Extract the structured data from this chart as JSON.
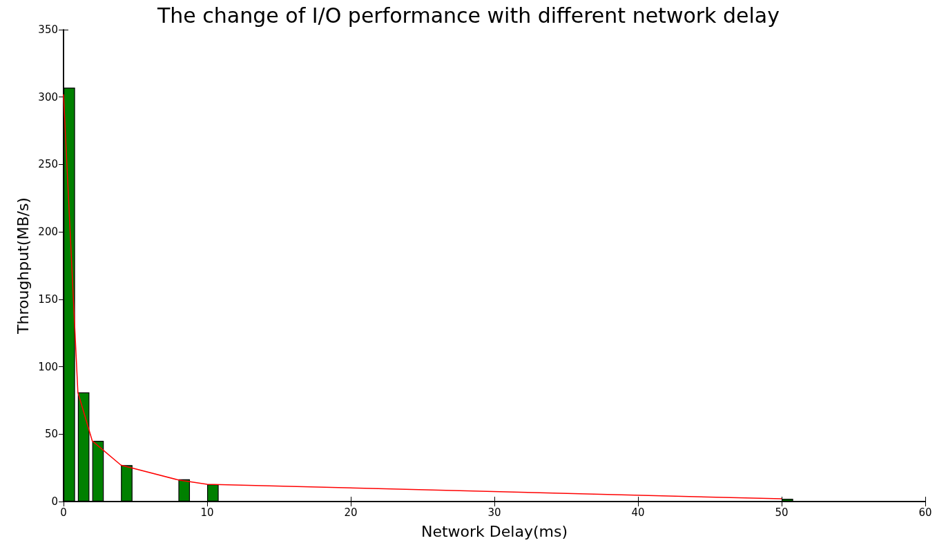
{
  "chart_data": {
    "type": "bar",
    "title": "The change of I/O performance with different network delay",
    "xlabel": "Network Delay(ms)",
    "ylabel": "Throughput(MB/s)",
    "x": [
      0.4,
      1.4,
      2.4,
      4.4,
      8.4,
      10.4,
      50.4
    ],
    "series": [
      {
        "color": "#008000",
        "values": [
          307,
          81,
          45,
          27,
          16.5,
          12.8,
          2
        ]
      },
      {
        "type": "line",
        "color": "#ff0000",
        "x": [
          0,
          1,
          2,
          4,
          8,
          10,
          50
        ],
        "values": [
          302,
          81,
          45,
          27,
          16,
          12.8,
          2
        ]
      }
    ],
    "xlim": [
      0,
      60
    ],
    "xticks": [
      0,
      10,
      20,
      30,
      40,
      50,
      60
    ],
    "ylim": [
      0,
      350
    ],
    "yticks": [
      0,
      50,
      100,
      150,
      200,
      250,
      300,
      350
    ],
    "grid": false,
    "marker": "none"
  }
}
